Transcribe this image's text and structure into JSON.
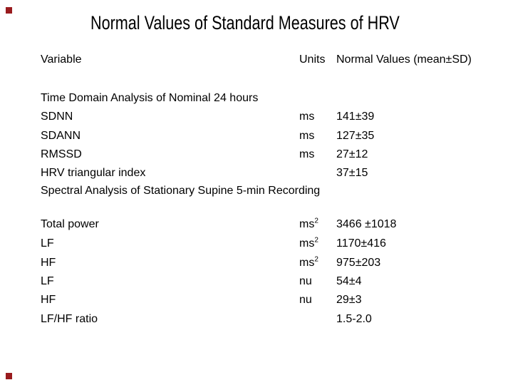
{
  "slide_title": "Normal Values of Standard Measures of HRV",
  "decoration": {
    "square_color": "#991B1E"
  },
  "table": {
    "header": {
      "variable": "Variable",
      "units": "Units",
      "values": "Normal Values (mean±SD)"
    },
    "rows": [
      {
        "type": "section",
        "label": "Time Domain Analysis of Nominal 24 hours"
      },
      {
        "type": "data",
        "label": "SDNN",
        "unit": "ms",
        "value": "141±39"
      },
      {
        "type": "data",
        "label": "SDANN",
        "unit": "ms",
        "value": "127±35"
      },
      {
        "type": "data",
        "label": "RMSSD",
        "unit": "ms",
        "value": "27±12"
      },
      {
        "type": "data",
        "label": "HRV triangular index",
        "unit": "",
        "value": "37±15"
      },
      {
        "type": "section",
        "label": "Spectral Analysis of Stationary Supine 5-min Recording"
      },
      {
        "type": "data",
        "label": "Total power",
        "unit": "ms",
        "unit_sup": "2",
        "value": "3466 ±1018"
      },
      {
        "type": "data",
        "label": "LF",
        "unit": "ms",
        "unit_sup": "2",
        "value": "1170±416"
      },
      {
        "type": "data",
        "label": "HF",
        "unit": "ms",
        "unit_sup": "2",
        "value": "975±203"
      },
      {
        "type": "data",
        "label": "LF",
        "unit": "nu",
        "value": "54±4"
      },
      {
        "type": "data",
        "label": "HF",
        "unit": "nu",
        "value": "29±3"
      },
      {
        "type": "data",
        "label": "LF/HF ratio",
        "unit": "",
        "value": "1.5-2.0"
      }
    ]
  }
}
